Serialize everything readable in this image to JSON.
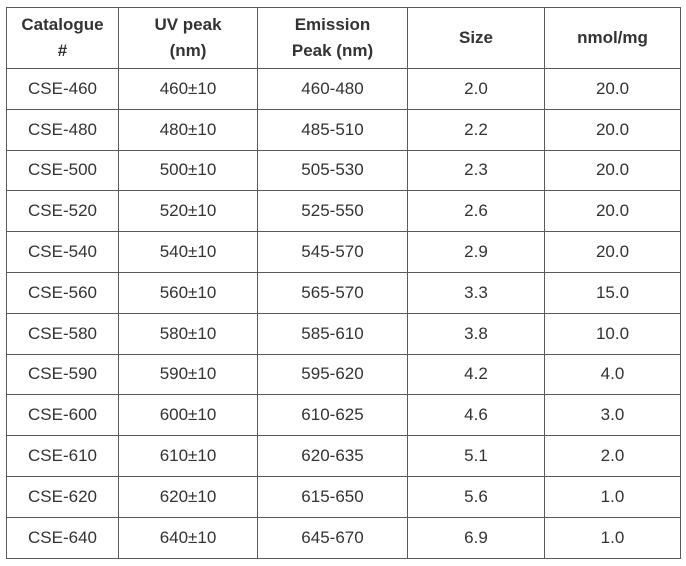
{
  "table": {
    "headers": [
      [
        "Catalogue",
        "#"
      ],
      [
        "UV peak",
        "(nm)"
      ],
      [
        "Emission",
        "Peak (nm)"
      ],
      [
        "Size"
      ],
      [
        "nmol/mg"
      ]
    ],
    "rows": [
      [
        "CSE-460",
        "460±10",
        "460-480",
        "2.0",
        "20.0"
      ],
      [
        "CSE-480",
        "480±10",
        "485-510",
        "2.2",
        "20.0"
      ],
      [
        "CSE-500",
        "500±10",
        "505-530",
        "2.3",
        "20.0"
      ],
      [
        "CSE-520",
        "520±10",
        "525-550",
        "2.6",
        "20.0"
      ],
      [
        "CSE-540",
        "540±10",
        "545-570",
        "2.9",
        "20.0"
      ],
      [
        "CSE-560",
        "560±10",
        "565-570",
        "3.3",
        "15.0"
      ],
      [
        "CSE-580",
        "580±10",
        "585-610",
        "3.8",
        "10.0"
      ],
      [
        "CSE-590",
        "590±10",
        "595-620",
        "4.2",
        "4.0"
      ],
      [
        "CSE-600",
        "600±10",
        "610-625",
        "4.6",
        "3.0"
      ],
      [
        "CSE-610",
        "610±10",
        "620-635",
        "5.1",
        "2.0"
      ],
      [
        "CSE-620",
        "620±10",
        "615-650",
        "5.6",
        "1.0"
      ],
      [
        "CSE-640",
        "640±10",
        "645-670",
        "6.9",
        "1.0"
      ]
    ]
  }
}
